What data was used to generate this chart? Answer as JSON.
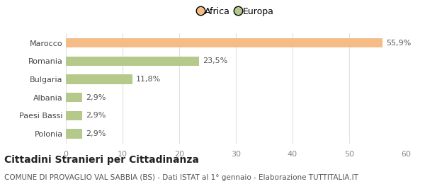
{
  "categories": [
    "Marocco",
    "Romania",
    "Bulgaria",
    "Albania",
    "Paesi Bassi",
    "Polonia"
  ],
  "values": [
    55.9,
    23.5,
    11.8,
    2.9,
    2.9,
    2.9
  ],
  "labels": [
    "55,9%",
    "23,5%",
    "11,8%",
    "2,9%",
    "2,9%",
    "2,9%"
  ],
  "colors": [
    "#f5bc87",
    "#b5c98a",
    "#b5c98a",
    "#b5c98a",
    "#b5c98a",
    "#b5c98a"
  ],
  "legend_items": [
    {
      "label": "Africa",
      "color": "#f5bc87"
    },
    {
      "label": "Europa",
      "color": "#b5c98a"
    }
  ],
  "xlim": [
    0,
    60
  ],
  "xticks": [
    0,
    10,
    20,
    30,
    40,
    50,
    60
  ],
  "title": "Cittadini Stranieri per Cittadinanza",
  "subtitle": "COMUNE DI PROVAGLIO VAL SABBIA (BS) - Dati ISTAT al 1° gennaio - Elaborazione TUTTITALIA.IT",
  "title_fontsize": 10,
  "subtitle_fontsize": 7.5,
  "label_fontsize": 8,
  "tick_fontsize": 8,
  "bar_height": 0.52,
  "bg_color": "#ffffff",
  "grid_color": "#e0e0e0"
}
